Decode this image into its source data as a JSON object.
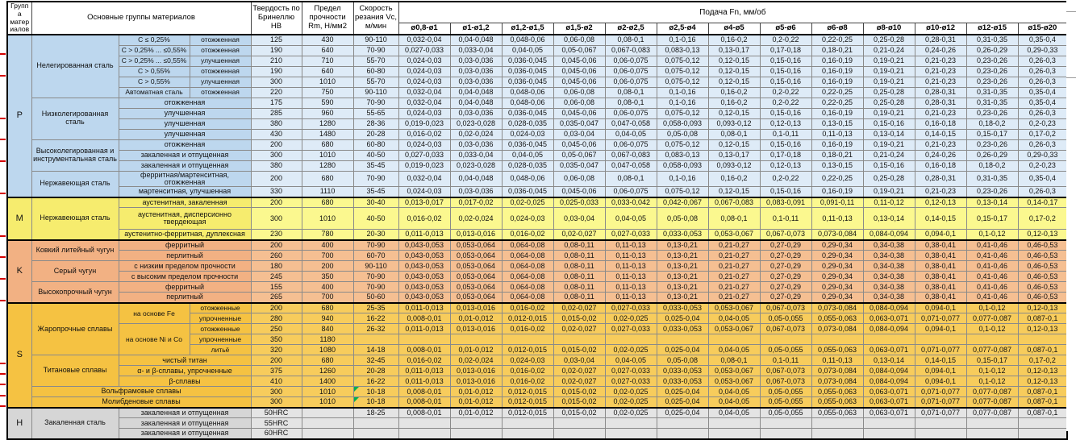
{
  "colors": {
    "p-left": "#BDD7EE",
    "p-data": "#DEEBF7",
    "m-left": "#F6EC6E",
    "m-data": "#FBF88F",
    "k-left": "#F2B183",
    "k-data": "#F5BF92",
    "s-left": "#F5C242",
    "s-data": "#F7CC5C",
    "h-left": "#D6D6D6",
    "h-data": "#E4E4E4",
    "note-green": "#00B050"
  },
  "header": {
    "group_col": "Группа материалов",
    "materials_col": "Основные группы материалов",
    "hardness_col": "Твердость по Бринеллю HB",
    "strength_col": "Предел прочности Rm, Н/мм2",
    "speed_col": "Скорость резания Vc, м/мин",
    "feed_title": "Подача Fn, мм/об",
    "feed_cols": [
      "ø0,8-ø1",
      "ø1-ø1,2",
      "ø1,2-ø1,5",
      "ø1,5-ø2",
      "ø2-ø2,5",
      "ø2,5-ø4",
      "ø4-ø5",
      "ø5-ø6",
      "ø6-ø8",
      "ø8-ø10",
      "ø10-ø12",
      "ø12-ø15",
      "ø15-ø20"
    ]
  },
  "feed_patterns": {
    "A": [
      "0,032-0,04",
      "0,04-0,048",
      "0,048-0,06",
      "0,06-0,08",
      "0,08-0,1",
      "0,1-0,16",
      "0,16-0,2",
      "0,2-0,22",
      "0,22-0,25",
      "0,25-0,28",
      "0,28-0,31",
      "0,31-0,35",
      "0,35-0,4"
    ],
    "B": [
      "0,027-0,033",
      "0,033-0,04",
      "0,04-0,05",
      "0,05-0,067",
      "0,067-0,083",
      "0,083-0,13",
      "0,13-0,17",
      "0,17-0,18",
      "0,18-0,21",
      "0,21-0,24",
      "0,24-0,26",
      "0,26-0,29",
      "0,29-0,33"
    ],
    "C": [
      "0,024-0,03",
      "0,03-0,036",
      "0,036-0,045",
      "0,045-0,06",
      "0,06-0,075",
      "0,075-0,12",
      "0,12-0,15",
      "0,15-0,16",
      "0,16-0,19",
      "0,19-0,21",
      "0,21-0,23",
      "0,23-0,26",
      "0,26-0,3"
    ],
    "D": [
      "0,019-0,023",
      "0,023-0,028",
      "0,028-0,035",
      "0,035-0,047",
      "0,047-0,058",
      "0,058-0,093",
      "0,093-0,12",
      "0,12-0,13",
      "0,13-0,15",
      "0,15-0,16",
      "0,16-0,18",
      "0,18-0,2",
      "0,2-0,23"
    ],
    "E": [
      "0,016-0,02",
      "0,02-0,024",
      "0,024-0,03",
      "0,03-0,04",
      "0,04-0,05",
      "0,05-0,08",
      "0,08-0,1",
      "0,1-0,11",
      "0,11-0,13",
      "0,13-0,14",
      "0,14-0,15",
      "0,15-0,17",
      "0,17-0,2"
    ],
    "F": [
      "0,013-0,017",
      "0,017-0,02",
      "0,02-0,025",
      "0,025-0,033",
      "0,033-0,042",
      "0,042-0,067",
      "0,067-0,083",
      "0,083-0,091",
      "0,091-0,11",
      "0,11-0,12",
      "0,12-0,13",
      "0,13-0,14",
      "0,14-0,17"
    ],
    "G": [
      "0,011-0,013",
      "0,013-0,016",
      "0,016-0,02",
      "0,02-0,027",
      "0,027-0,033",
      "0,033-0,053",
      "0,053-0,067",
      "0,067-0,073",
      "0,073-0,084",
      "0,084-0,094",
      "0,094-0,1",
      "0,1-0,12",
      "0,12-0,13"
    ],
    "K": [
      "0,043-0,053",
      "0,053-0,064",
      "0,064-0,08",
      "0,08-0,11",
      "0,11-0,13",
      "0,13-0,21",
      "0,21-0,27",
      "0,27-0,29",
      "0,29-0,34",
      "0,34-0,38",
      "0,38-0,41",
      "0,41-0,46",
      "0,46-0,53"
    ],
    "I": [
      "0,008-0,01",
      "0,01-0,012",
      "0,012-0,015",
      "0,015-0,02",
      "0,02-0,025",
      "0,025-0,04",
      "0,04-0,05",
      "0,05-0,055",
      "0,055-0,063",
      "0,063-0,071",
      "0,071-0,077",
      "0,077-0,087",
      "0,087-0,1"
    ],
    "Z": [
      "",
      "",
      "",
      "",
      "",
      "",
      "",
      "",
      "",
      "",
      "",
      "",
      ""
    ]
  },
  "rows": [
    {
      "g": "P",
      "sec": 1,
      "left": [
        {
          "t": "P",
          "rs": 15,
          "cls": "letter"
        },
        {
          "t": "Нелегированная сталь",
          "rs": 6,
          "cls": "name"
        },
        {
          "t": "С ≤ 0,25%"
        },
        {
          "t": "отожженная"
        }
      ],
      "hb": "125",
      "rm": "430",
      "vc": "90-110",
      "f": "A"
    },
    {
      "g": "P",
      "left": [
        {
          "t": "С > 0,25% ... ≤0,55%"
        },
        {
          "t": "отожженная"
        }
      ],
      "hb": "190",
      "rm": "640",
      "vc": "70-90",
      "f": "B"
    },
    {
      "g": "P",
      "left": [
        {
          "t": "С > 0,25% ... ≤0,55%"
        },
        {
          "t": "улучшенная"
        }
      ],
      "hb": "210",
      "rm": "710",
      "vc": "55-70",
      "f": "C"
    },
    {
      "g": "P",
      "left": [
        {
          "t": "С > 0,55%"
        },
        {
          "t": "отожженная"
        }
      ],
      "hb": "190",
      "rm": "640",
      "vc": "60-80",
      "f": "C"
    },
    {
      "g": "P",
      "left": [
        {
          "t": "С > 0,55%"
        },
        {
          "t": "улучшенная"
        }
      ],
      "hb": "300",
      "rm": "1010",
      "vc": "55-70",
      "f": "C"
    },
    {
      "g": "P",
      "left": [
        {
          "t": "Автоматная сталь"
        },
        {
          "t": "отожженная"
        }
      ],
      "hb": "220",
      "rm": "750",
      "vc": "90-110",
      "f": "A"
    },
    {
      "g": "P",
      "nb": 1,
      "left": [
        {
          "t": "Низколегированная сталь",
          "rs": 4,
          "cls": "name"
        },
        {
          "t": "отожженная",
          "cs": 2
        }
      ],
      "hb": "175",
      "rm": "590",
      "vc": "70-90",
      "f": "A"
    },
    {
      "g": "P",
      "left": [
        {
          "t": "улучшенная",
          "cs": 2
        }
      ],
      "hb": "285",
      "rm": "960",
      "vc": "55-65",
      "f": "C"
    },
    {
      "g": "P",
      "left": [
        {
          "t": "улучшенная",
          "cs": 2
        }
      ],
      "hb": "380",
      "rm": "1280",
      "vc": "28-36",
      "f": "D"
    },
    {
      "g": "P",
      "left": [
        {
          "t": "улучшенная",
          "cs": 2
        }
      ],
      "hb": "430",
      "rm": "1480",
      "vc": "20-28",
      "f": "E"
    },
    {
      "g": "P",
      "nb": 1,
      "left": [
        {
          "t": "Высоколегированная и инструментальная сталь",
          "rs": 3,
          "cls": "name"
        },
        {
          "t": "отожженная",
          "cs": 2
        }
      ],
      "hb": "200",
      "rm": "680",
      "vc": "60-80",
      "f": "C"
    },
    {
      "g": "P",
      "left": [
        {
          "t": "закаленная и отпущенная",
          "cs": 2
        }
      ],
      "hb": "300",
      "rm": "1010",
      "vc": "40-50",
      "f": "B"
    },
    {
      "g": "P",
      "left": [
        {
          "t": "закаленная и отпущенная",
          "cs": 2
        }
      ],
      "hb": "380",
      "rm": "1280",
      "vc": "35-45",
      "f": "D"
    },
    {
      "g": "P",
      "nb": 1,
      "left": [
        {
          "t": "Нержавеющая сталь",
          "rs": 2,
          "cls": "name"
        },
        {
          "t": "ферритная/мартенситная, отожженная",
          "cs": 2
        }
      ],
      "hb": "200",
      "rm": "680",
      "vc": "70-90",
      "f": "A"
    },
    {
      "g": "P",
      "left": [
        {
          "t": "мартенситная, улучшенная",
          "cs": 2
        }
      ],
      "hb": "330",
      "rm": "1110",
      "vc": "35-45",
      "f": "C"
    },
    {
      "g": "M",
      "sec": 1,
      "left": [
        {
          "t": "M",
          "rs": 3,
          "cls": "letter"
        },
        {
          "t": "Нержавеющая сталь",
          "rs": 3,
          "cls": "name"
        },
        {
          "t": "аустенитная, закаленная",
          "cs": 2
        }
      ],
      "hb": "200",
      "rm": "680",
      "vc": "30-40",
      "f": "F"
    },
    {
      "g": "M",
      "tall": 1,
      "left": [
        {
          "t": "аустенитная, дисперсионно твердеющая",
          "cs": 2
        }
      ],
      "hb": "300",
      "rm": "1010",
      "vc": "40-50",
      "f": "E"
    },
    {
      "g": "M",
      "left": [
        {
          "t": "аустенитно-ферритная, дуплексная",
          "cs": 2
        }
      ],
      "hb": "230",
      "rm": "780",
      "vc": "20-30",
      "f": "G"
    },
    {
      "g": "K",
      "sec": 1,
      "left": [
        {
          "t": "K",
          "rs": 6,
          "cls": "letter"
        },
        {
          "t": "Ковкий литейный чугун",
          "rs": 2,
          "cls": "name"
        },
        {
          "t": "ферритный",
          "cs": 2
        }
      ],
      "hb": "200",
      "rm": "400",
      "vc": "70-90",
      "f": "K"
    },
    {
      "g": "K",
      "left": [
        {
          "t": "перлитный",
          "cs": 2
        }
      ],
      "hb": "260",
      "rm": "700",
      "vc": "60-70",
      "f": "K"
    },
    {
      "g": "K",
      "nb": 1,
      "left": [
        {
          "t": "Серый чугун",
          "rs": 2,
          "cls": "name"
        },
        {
          "t": "с низким пределом прочности",
          "cs": 2
        }
      ],
      "hb": "180",
      "rm": "200",
      "vc": "90-110",
      "f": "K"
    },
    {
      "g": "K",
      "left": [
        {
          "t": "с высоким пределом прочности",
          "cs": 2
        }
      ],
      "hb": "245",
      "rm": "350",
      "vc": "70-90",
      "f": "K"
    },
    {
      "g": "K",
      "nb": 1,
      "left": [
        {
          "t": "Высокопрочный чугун",
          "rs": 2,
          "cls": "name"
        },
        {
          "t": "ферритный",
          "cs": 2
        }
      ],
      "hb": "155",
      "rm": "400",
      "vc": "70-90",
      "f": "K"
    },
    {
      "g": "K",
      "left": [
        {
          "t": "перлитный",
          "cs": 2
        }
      ],
      "hb": "265",
      "rm": "700",
      "vc": "50-60",
      "f": "K"
    },
    {
      "g": "S",
      "sec": 1,
      "left": [
        {
          "t": "S",
          "rs": 10,
          "cls": "letter"
        },
        {
          "t": "Жаропрочные сплавы",
          "rs": 5,
          "cls": "name"
        },
        {
          "t": "на основе Fe",
          "rs": 2
        },
        {
          "t": "отожженные"
        }
      ],
      "hb": "200",
      "rm": "680",
      "vc": "25-35",
      "f": "G"
    },
    {
      "g": "S",
      "left": [
        {
          "t": "упрочненные"
        }
      ],
      "hb": "280",
      "rm": "940",
      "vc": "16-22",
      "f": "I"
    },
    {
      "g": "S",
      "left": [
        {
          "t": "на основе Ni и Co",
          "rs": 3
        },
        {
          "t": "отожженные"
        }
      ],
      "hb": "250",
      "rm": "840",
      "vc": "26-32",
      "f": "G"
    },
    {
      "g": "S",
      "left": [
        {
          "t": "упрочненные"
        }
      ],
      "hb": "350",
      "rm": "1180",
      "vc": "",
      "f": "Z"
    },
    {
      "g": "S",
      "left": [
        {
          "t": "литьё"
        }
      ],
      "hb": "320",
      "rm": "1080",
      "vc": "14-18",
      "f": "I"
    },
    {
      "g": "S",
      "nb": 1,
      "left": [
        {
          "t": "Титановые сплавы",
          "rs": 3,
          "cls": "name"
        },
        {
          "t": "чистый титан",
          "cs": 2
        }
      ],
      "hb": "200",
      "rm": "680",
      "vc": "32-45",
      "f": "E"
    },
    {
      "g": "S",
      "left": [
        {
          "t": "α- и β-сплавы, упрочненные",
          "cs": 2
        }
      ],
      "hb": "375",
      "rm": "1260",
      "vc": "20-28",
      "f": "G"
    },
    {
      "g": "S",
      "left": [
        {
          "t": "β-сплавы",
          "cs": 2
        }
      ],
      "hb": "410",
      "rm": "1400",
      "vc": "16-22",
      "f": "G"
    },
    {
      "g": "S",
      "nb": 1,
      "left": [
        {
          "t": "Вольфрамовые сплавы",
          "cs": 3,
          "cls": "name"
        }
      ],
      "hb": "300",
      "rm": "1010",
      "vc": "10-18",
      "f": "I",
      "note": 1
    },
    {
      "g": "S",
      "nb": 1,
      "left": [
        {
          "t": "Молибденовые сплавы",
          "cs": 3,
          "cls": "name"
        }
      ],
      "hb": "300",
      "rm": "1010",
      "vc": "10-18",
      "f": "I",
      "note": 1
    },
    {
      "g": "H",
      "sec": 1,
      "left": [
        {
          "t": "H",
          "rs": 3,
          "cls": "letter"
        },
        {
          "t": "Закаленная сталь",
          "rs": 3,
          "cls": "name"
        },
        {
          "t": "закаленная и отпущенная",
          "cs": 2
        }
      ],
      "hb": "50HRC",
      "rm": "",
      "vc": "18-25",
      "f": "I"
    },
    {
      "g": "H",
      "left": [
        {
          "t": "закаленная и отпущенная",
          "cs": 2
        }
      ],
      "hb": "55HRC",
      "rm": "",
      "vc": "",
      "f": "Z"
    },
    {
      "g": "H",
      "left": [
        {
          "t": "закаленная и отпущенная",
          "cs": 2
        }
      ],
      "hb": "60HRC",
      "rm": "",
      "vc": "",
      "f": "Z"
    }
  ]
}
